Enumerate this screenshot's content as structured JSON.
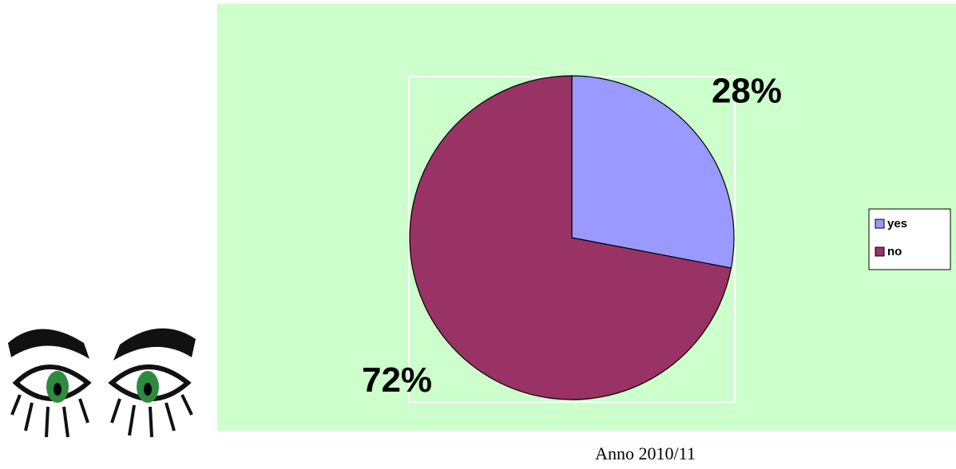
{
  "chart_data": {
    "type": "pie",
    "categories": [
      "yes",
      "no"
    ],
    "values": [
      28,
      72
    ],
    "value_labels": [
      "28%",
      "72%"
    ],
    "colors": [
      "#9999ff",
      "#993366"
    ],
    "legend": "right",
    "caption": "Anno 2010/11"
  }
}
